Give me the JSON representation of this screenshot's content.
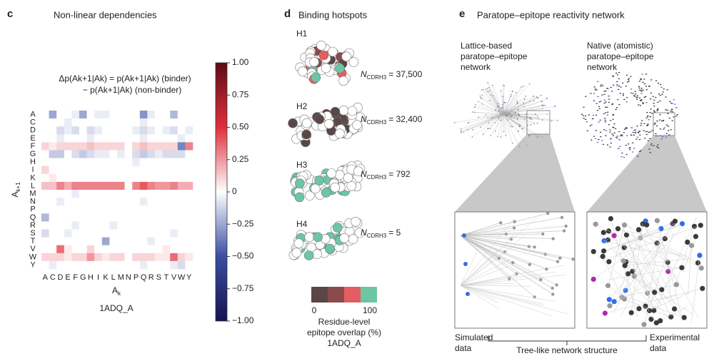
{
  "chart_data": {
    "type": "heatmap",
    "panel": "c",
    "title": "Non-linear dependencies",
    "equation": [
      "Δp(Ak+1|Ak) = p(Ak+1|Ak) (binder)",
      "− p(Ak+1|Ak) (non-binder)"
    ],
    "xlabel": {
      "base": "A",
      "sub": "k"
    },
    "ylabel": {
      "base": "A",
      "sub": "k+1"
    },
    "caption": "1ADQ_A",
    "categories": [
      "A",
      "C",
      "D",
      "E",
      "F",
      "G",
      "H",
      "I",
      "K",
      "L",
      "M",
      "N",
      "P",
      "Q",
      "R",
      "S",
      "T",
      "V",
      "W",
      "Y"
    ],
    "rows": [
      "A",
      "C",
      "D",
      "E",
      "F",
      "G",
      "H",
      "I",
      "K",
      "L",
      "M",
      "N",
      "P",
      "Q",
      "R",
      "S",
      "T",
      "V",
      "W",
      "Y"
    ],
    "values": [
      [
        0,
        -0.25,
        0,
        0,
        -0.05,
        -0.25,
        0,
        -0.05,
        -0.05,
        0,
        0,
        0,
        0,
        -0.3,
        -0.05,
        0,
        0,
        -0.2,
        0,
        0
      ],
      [
        0,
        0,
        0,
        -0.05,
        0,
        0,
        0,
        0,
        0,
        0,
        0,
        0,
        0,
        -0.05,
        0,
        0,
        0,
        0,
        0,
        0
      ],
      [
        0,
        0,
        -0.1,
        -0.05,
        -0.1,
        0,
        -0.1,
        -0.05,
        0,
        0,
        0,
        0,
        -0.05,
        -0.1,
        -0.05,
        0,
        -0.05,
        -0.1,
        0,
        -0.05
      ],
      [
        0,
        0,
        -0.05,
        0,
        0,
        0,
        -0.05,
        0,
        0,
        0,
        0,
        0,
        0,
        -0.05,
        0,
        0,
        0,
        0,
        -0.05,
        0
      ],
      [
        0.1,
        0.05,
        0.1,
        0.1,
        0.1,
        0.1,
        0.15,
        0.1,
        0.1,
        0.1,
        0.1,
        0,
        0.1,
        0.15,
        0.1,
        0.1,
        0.1,
        0.1,
        -0.35,
        0.3
      ],
      [
        0,
        -0.15,
        -0.15,
        0,
        -0.1,
        -0.15,
        -0.1,
        -0.05,
        -0.05,
        0,
        -0.05,
        0,
        -0.1,
        -0.15,
        -0.1,
        -0.05,
        -0.1,
        -0.1,
        -0.1,
        0
      ],
      [
        0,
        0,
        0,
        0,
        0,
        0,
        0,
        0,
        0,
        0,
        0,
        0,
        -0.05,
        0,
        0,
        0,
        0,
        0,
        0,
        0
      ],
      [
        0.1,
        0,
        0,
        0,
        0,
        0,
        0,
        0,
        0,
        0,
        0,
        0,
        0,
        0,
        0,
        0,
        0,
        0,
        0,
        0
      ],
      [
        0,
        0.05,
        0,
        0,
        0,
        0,
        0,
        0,
        0,
        0,
        0,
        0,
        0,
        0,
        0,
        0,
        0,
        0,
        0,
        0
      ],
      [
        0.15,
        0.15,
        0.3,
        0.2,
        0.3,
        0.3,
        0.3,
        0.3,
        0.3,
        0.3,
        0.3,
        0,
        0.3,
        0.4,
        0.3,
        0.25,
        0.25,
        0.3,
        0.2,
        0.2
      ],
      [
        0,
        0,
        0,
        0,
        -0.05,
        0,
        0,
        0,
        0,
        0,
        0,
        0,
        0,
        0,
        0,
        0,
        0,
        0,
        0,
        0
      ],
      [
        0,
        0,
        -0.05,
        0,
        0,
        0,
        0,
        0,
        0,
        0,
        0,
        0,
        0,
        -0.05,
        0,
        0,
        0,
        0,
        0,
        0
      ],
      [
        0,
        0,
        0,
        0,
        0,
        0,
        0,
        0,
        0,
        0,
        0,
        0,
        0,
        0,
        0,
        0,
        0,
        0,
        0,
        0
      ],
      [
        -0.2,
        0,
        0,
        0,
        0,
        0,
        0,
        0,
        0,
        0,
        0,
        0,
        0,
        0,
        0,
        0,
        0,
        0,
        0,
        0
      ],
      [
        0,
        0,
        0,
        0,
        -0.05,
        0,
        0,
        0,
        0,
        -0.05,
        0,
        0,
        0,
        0,
        0,
        0,
        0,
        0,
        0,
        0
      ],
      [
        -0.1,
        0,
        0,
        -0.05,
        0,
        0,
        0,
        0,
        0,
        0,
        0,
        0,
        0,
        0,
        0,
        0,
        0,
        -0.05,
        0,
        0
      ],
      [
        0,
        0,
        0,
        0,
        0,
        0,
        0,
        0,
        -0.25,
        0,
        0,
        0,
        0,
        0,
        -0.05,
        0,
        0,
        0,
        0,
        0
      ],
      [
        0,
        0,
        0.35,
        0.05,
        0,
        0,
        0.1,
        0,
        0,
        0,
        0,
        0,
        0,
        0,
        0,
        0,
        0.05,
        0,
        0,
        0
      ],
      [
        0.1,
        0.1,
        0.1,
        0.05,
        0.1,
        0.1,
        0.25,
        0.1,
        0.05,
        0.1,
        0.1,
        0,
        0.1,
        0.1,
        0.1,
        0.05,
        0.05,
        0.35,
        0.1,
        0.05
      ],
      [
        0,
        -0.05,
        0,
        0,
        0,
        0,
        0,
        0,
        0,
        0,
        0,
        0,
        0,
        -0.05,
        0,
        0,
        0,
        -0.05,
        -0.1,
        0
      ]
    ],
    "zlim": [
      -1,
      1
    ],
    "zticks": [
      {
        "value": 1,
        "label": "1.00"
      },
      {
        "value": 0.75,
        "label": "0.75"
      },
      {
        "value": 0.5,
        "label": "0.50"
      },
      {
        "value": 0.25,
        "label": "0.25"
      },
      0,
      {
        "value": -0.25,
        "label": "−0.25"
      },
      {
        "value": -0.5,
        "label": "−0.50"
      },
      {
        "value": -0.75,
        "label": "−0.75"
      },
      {
        "value": -1,
        "label": "−1.00"
      }
    ],
    "colors": [
      "#16124f",
      "#3a4ea3",
      "#ffffff",
      "#e02f3c",
      "#5e0b14"
    ]
  },
  "hotspots": {
    "panel": "d",
    "title": "Binding hotspots",
    "items": [
      {
        "label": "H1",
        "symbol": "N",
        "sub": "CDRH3",
        "count": "= 37,500"
      },
      {
        "label": "H2",
        "symbol": "N",
        "sub": "CDRH3",
        "count": "= 32,400"
      },
      {
        "label": "H3",
        "symbol": "N",
        "sub": "CDRH3",
        "count": "= 792"
      },
      {
        "label": "H4",
        "symbol": "N",
        "sub": "CDRH3",
        "count": "= 5"
      }
    ],
    "legend": {
      "colors": [
        "#5a4646",
        "#8c4a4d",
        "#e45d62",
        "#6cc6a4"
      ],
      "min": "0",
      "max": "100",
      "title": [
        "Residue-level",
        "epitope overlap (%)",
        "1ADQ_A"
      ]
    }
  },
  "network": {
    "panel": "e",
    "title": "Paratope–epitope reactivity network",
    "left_title": [
      "Lattice-based",
      "paratope–epitope",
      "network"
    ],
    "right_title": [
      "Native (atomistic)",
      "paratope–epitope",
      "network"
    ],
    "left_caption": [
      "Simulated",
      "data"
    ],
    "right_caption": [
      "Experimental",
      "data"
    ],
    "bracket": "Tree-like network structure"
  }
}
